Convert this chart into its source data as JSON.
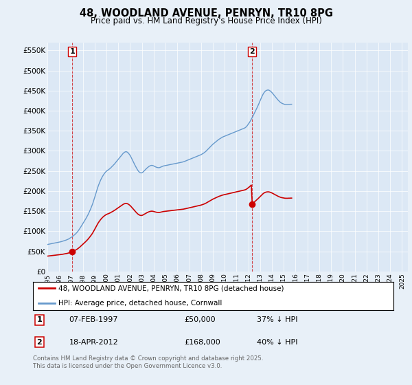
{
  "title": "48, WOODLAND AVENUE, PENRYN, TR10 8PG",
  "subtitle": "Price paid vs. HM Land Registry's House Price Index (HPI)",
  "background_color": "#e8f0f8",
  "plot_bg_color": "#dce8f5",
  "ylim": [
    0,
    570000
  ],
  "yticks": [
    0,
    50000,
    100000,
    150000,
    200000,
    250000,
    300000,
    350000,
    400000,
    450000,
    500000,
    550000
  ],
  "ytick_labels": [
    "£0",
    "£50K",
    "£100K",
    "£150K",
    "£200K",
    "£250K",
    "£300K",
    "£350K",
    "£400K",
    "£450K",
    "£500K",
    "£550K"
  ],
  "legend_line1": "48, WOODLAND AVENUE, PENRYN, TR10 8PG (detached house)",
  "legend_line2": "HPI: Average price, detached house, Cornwall",
  "sale1_date": "07-FEB-1997",
  "sale1_price": "£50,000",
  "sale1_hpi": "37% ↓ HPI",
  "sale2_date": "18-APR-2012",
  "sale2_price": "£168,000",
  "sale2_hpi": "40% ↓ HPI",
  "footer": "Contains HM Land Registry data © Crown copyright and database right 2025.\nThis data is licensed under the Open Government Licence v3.0.",
  "red_color": "#cc0000",
  "blue_color": "#6699cc",
  "sale_marker_color": "#cc0000",
  "sale1_x": 1997.1,
  "sale1_y": 50000,
  "sale2_x": 2012.3,
  "sale2_y": 168000,
  "vline1_x": 1997.1,
  "vline2_x": 2012.3,
  "xmin": 1995,
  "xmax": 2025.5,
  "hpi_base_values": [
    67000,
    67500,
    68000,
    68500,
    69000,
    69500,
    70000,
    70500,
    71000,
    71500,
    72000,
    72500,
    73000,
    73500,
    74000,
    74800,
    75600,
    76400,
    77200,
    78000,
    79000,
    80000,
    81500,
    83000,
    84500,
    86000,
    88000,
    90000,
    92000,
    94500,
    97000,
    100000,
    103500,
    107000,
    111000,
    115000,
    119000,
    123000,
    127000,
    131000,
    135500,
    140000,
    145000,
    150500,
    156000,
    162000,
    168500,
    176000,
    184000,
    192000,
    200500,
    208000,
    215000,
    221000,
    227000,
    232000,
    236500,
    240500,
    244000,
    247000,
    249500,
    251500,
    253000,
    255000,
    257000,
    259500,
    262000,
    264500,
    267000,
    270000,
    273000,
    276000,
    279000,
    282000,
    285000,
    288000,
    291000,
    294000,
    296000,
    297500,
    298000,
    297000,
    295000,
    292000,
    288500,
    284000,
    279000,
    274000,
    269000,
    264000,
    259500,
    255000,
    251000,
    248000,
    246000,
    245000,
    245500,
    247000,
    249500,
    252000,
    254500,
    257000,
    259000,
    261000,
    262500,
    263500,
    264000,
    263500,
    262500,
    261000,
    260000,
    259000,
    258500,
    258000,
    258500,
    259500,
    260500,
    261500,
    262500,
    263000,
    263500,
    264000,
    264500,
    265000,
    265500,
    266000,
    266500,
    267000,
    267500,
    268000,
    268500,
    269000,
    269500,
    270000,
    270500,
    271000,
    271500,
    272000,
    272700,
    273500,
    274500,
    275500,
    276500,
    277500,
    278500,
    279500,
    280500,
    281500,
    282500,
    283500,
    284500,
    285500,
    286500,
    287500,
    288500,
    289500,
    290500,
    292000,
    293500,
    295000,
    297000,
    299000,
    301500,
    304000,
    306500,
    309000,
    311500,
    314000,
    316500,
    318500,
    320500,
    322500,
    324500,
    326500,
    328500,
    330000,
    331500,
    333000,
    334500,
    335500,
    336500,
    337500,
    338500,
    339500,
    340500,
    341500,
    342500,
    343500,
    344500,
    345500,
    346500,
    347500,
    348500,
    349500,
    350500,
    351500,
    352500,
    353500,
    354500,
    355500,
    356500,
    358000,
    360000,
    363000,
    366500,
    370000,
    374000,
    378500,
    383000,
    388000,
    393000,
    398000,
    403000,
    408000,
    413500,
    419000,
    425000,
    430500,
    436000,
    441000,
    445000,
    448000,
    450000,
    451000,
    451500,
    451000,
    449500,
    447500,
    445000,
    442000,
    439000,
    436000,
    433000,
    430000,
    427000,
    424500,
    422000,
    420000,
    418500,
    417500,
    416500,
    415500,
    415000,
    415000,
    415000,
    415500,
    415500,
    416000,
    416000
  ],
  "hpi_start_year": 1995,
  "hpi_month_step": 0.08333
}
